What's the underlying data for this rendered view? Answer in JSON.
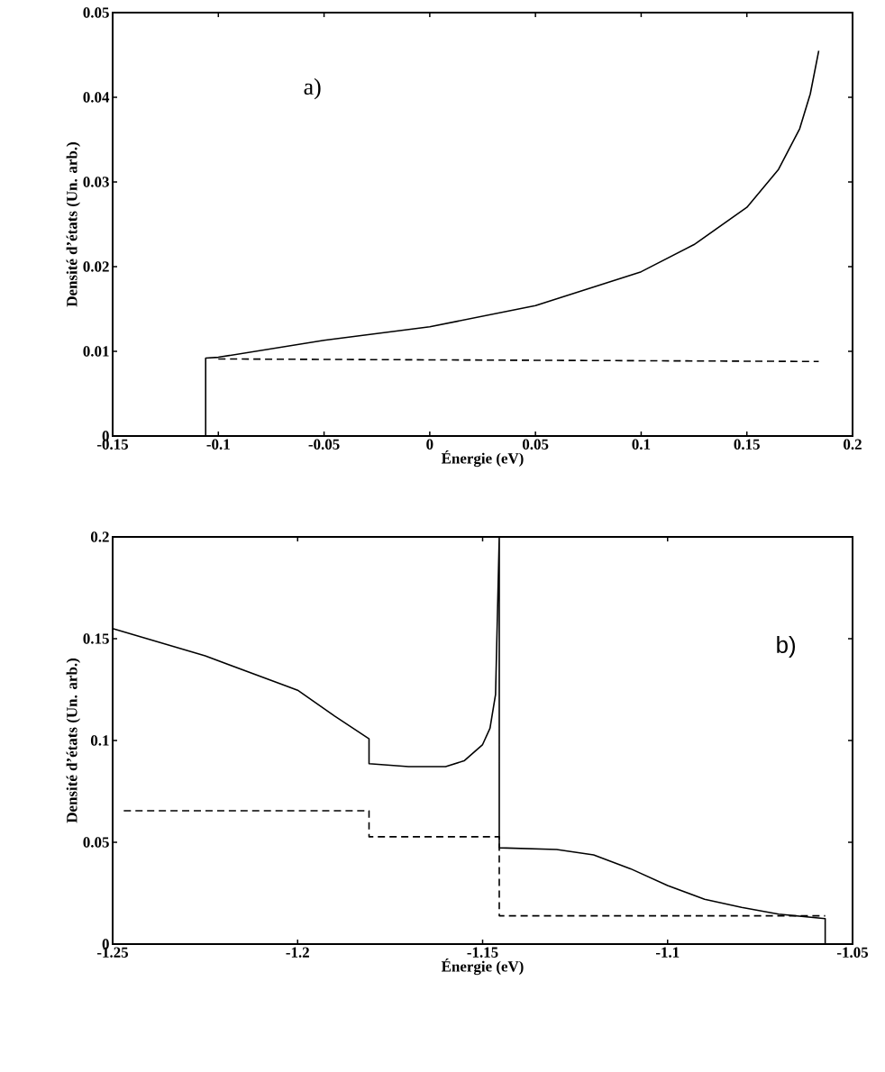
{
  "chart_data": [
    {
      "type": "line",
      "xlabel": "Énergie (eV)",
      "ylabel": "Densité d’états (Un. arb.)",
      "annotations": [
        "a)"
      ],
      "xlim": [
        -0.15,
        0.2
      ],
      "xticks": [
        -0.15,
        -0.1,
        -0.05,
        0,
        0.05,
        0.1,
        0.15,
        0.2
      ],
      "ylim": [
        0,
        0.05
      ],
      "yticks": [
        0,
        0.01,
        0.02,
        0.03,
        0.04,
        0.05
      ],
      "series": [
        {
          "color": "#000000",
          "line_style": "solid",
          "x": [
            -0.106,
            -0.106,
            -0.1,
            -0.05,
            0,
            0.05,
            0.1,
            0.125,
            0.15,
            0.165,
            0.175,
            0.18,
            0.184
          ],
          "values": [
            0,
            0.0092,
            0.0093,
            0.0113,
            0.0129,
            0.0154,
            0.0194,
            0.0226,
            0.027,
            0.0315,
            0.0363,
            0.0404,
            0.0455
          ]
        },
        {
          "color": "#000000",
          "line_style": "dashed",
          "x": [
            -0.1,
            0.184
          ],
          "values": [
            0.0091,
            0.0088
          ]
        }
      ]
    },
    {
      "type": "line",
      "xlabel": "Énergie (eV)",
      "ylabel": "Densité d’états (Un. arb.)",
      "annotations": [
        "b)"
      ],
      "xlim": [
        -1.25,
        -1.05
      ],
      "xticks": [
        -1.25,
        -1.2,
        -1.15,
        -1.1,
        -1.05
      ],
      "ylim": [
        0,
        0.2
      ],
      "yticks": [
        0,
        0.05,
        0.1,
        0.15,
        0.2
      ],
      "series": [
        {
          "color": "#000000",
          "line_style": "solid",
          "x": [
            -1.25,
            -1.225,
            -1.2,
            -1.19,
            -1.1807,
            -1.1807,
            -1.17,
            -1.16,
            -1.155,
            -1.15,
            -1.148,
            -1.1465,
            -1.1455,
            -1.1455,
            -1.13,
            -1.12,
            -1.11,
            -1.1,
            -1.09,
            -1.08,
            -1.07,
            -1.0574,
            -1.0574
          ],
          "values": [
            0.155,
            0.1416,
            0.1247,
            0.112,
            0.1008,
            0.0886,
            0.0872,
            0.0872,
            0.09,
            0.098,
            0.106,
            0.1226,
            0.2,
            0.0473,
            0.0465,
            0.0438,
            0.037,
            0.0288,
            0.022,
            0.018,
            0.0147,
            0.0125,
            0
          ]
        },
        {
          "color": "#000000",
          "line_style": "dashed",
          "x": [
            -1.247,
            -1.1807,
            -1.1807,
            -1.1455,
            -1.1455,
            -1.0574
          ],
          "values": [
            0.0655,
            0.0655,
            0.0527,
            0.0527,
            0.0139,
            0.0139
          ]
        }
      ]
    }
  ]
}
